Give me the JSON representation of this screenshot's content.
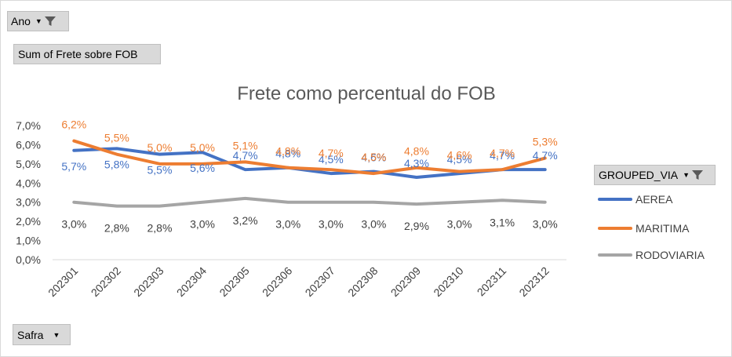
{
  "filters": {
    "ano_label": "Ano",
    "sum_label": "Sum of Frete sobre FOB",
    "safra_label": "Safra",
    "grouped_label": "GROUPED_VIA"
  },
  "colors": {
    "AEREA": "#4472c4",
    "MARITIMA": "#ed7d31",
    "RODOVIARIA": "#a5a5a5"
  },
  "chart_data": {
    "type": "line",
    "title": "Frete como percentual do FOB",
    "xlabel": "",
    "ylabel": "",
    "categories": [
      "202301",
      "202302",
      "202303",
      "202304",
      "202305",
      "202306",
      "202307",
      "202308",
      "202309",
      "202310",
      "202311",
      "202312"
    ],
    "yticks": [
      "0,0%",
      "1,0%",
      "2,0%",
      "3,0%",
      "4,0%",
      "5,0%",
      "6,0%",
      "7,0%"
    ],
    "ylim": [
      0,
      7
    ],
    "grid": false,
    "legend_position": "right",
    "series": [
      {
        "name": "AEREA",
        "values": [
          5.7,
          5.8,
          5.5,
          5.6,
          4.7,
          4.8,
          4.5,
          4.6,
          4.3,
          4.5,
          4.7,
          4.7
        ],
        "labels": [
          "5,7%",
          "5,8%",
          "5,5%",
          "5,6%",
          "4,7%",
          "4,8%",
          "4,5%",
          "4,6%",
          "4,3%",
          "4,5%",
          "4,7%",
          "4,7%"
        ]
      },
      {
        "name": "MARITIMA",
        "values": [
          6.2,
          5.5,
          5.0,
          5.0,
          5.1,
          4.8,
          4.7,
          4.5,
          4.8,
          4.6,
          4.7,
          5.3
        ],
        "labels": [
          "6,2%",
          "5,5%",
          "5,0%",
          "5,0%",
          "5,1%",
          "4,8%",
          "4,7%",
          "4,5%",
          "4,8%",
          "4,6%",
          "4,7%",
          "5,3%"
        ]
      },
      {
        "name": "RODOVIARIA",
        "values": [
          3.0,
          2.8,
          2.8,
          3.0,
          3.2,
          3.0,
          3.0,
          3.0,
          2.9,
          3.0,
          3.1,
          3.0
        ],
        "labels": [
          "3,0%",
          "2,8%",
          "2,8%",
          "3,0%",
          "3,2%",
          "3,0%",
          "3,0%",
          "3,0%",
          "2,9%",
          "3,0%",
          "3,1%",
          "3,0%"
        ]
      }
    ]
  }
}
